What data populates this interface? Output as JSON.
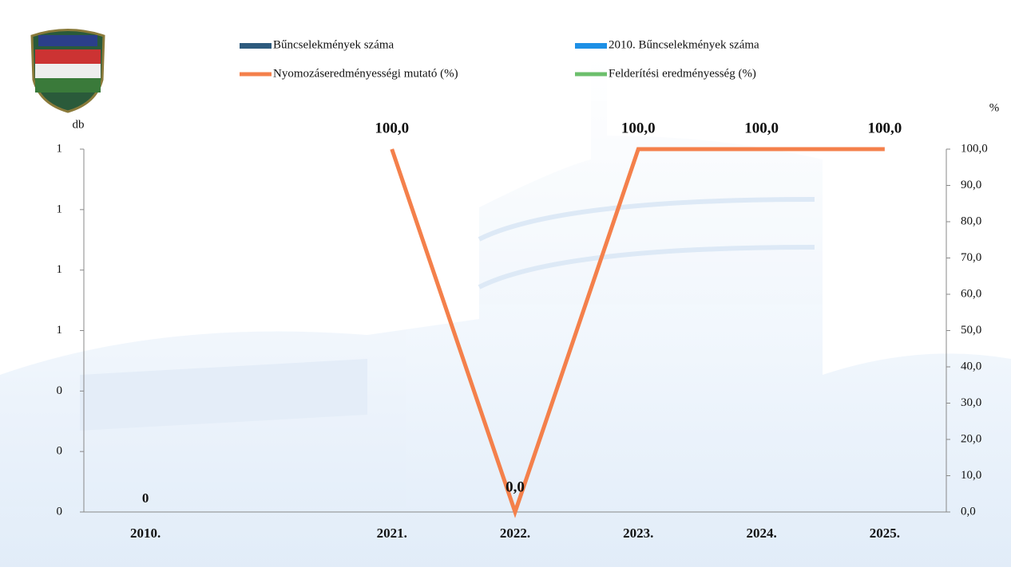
{
  "chart_data": {
    "type": "combo",
    "categories": [
      "2010.",
      null,
      "2021.",
      "2022.",
      "2023.",
      "2024.",
      "2025."
    ],
    "y_label": "db",
    "y2_label": "%",
    "ylim": [
      0,
      1.2
    ],
    "yticks": [
      0,
      {
        "value": 0.2,
        "label": "0"
      },
      {
        "value": 0.4,
        "label": "0"
      },
      {
        "value": 0.6,
        "label": "1"
      },
      {
        "value": 0.8,
        "label": "1"
      },
      {
        "value": 1,
        "label": "1"
      },
      {
        "value": 1.2,
        "label": "1"
      }
    ],
    "y2lim": [
      0,
      100
    ],
    "y2ticks": [
      {
        "value": 0,
        "label": "0,0"
      },
      {
        "value": 10,
        "label": "10,0"
      },
      {
        "value": 20,
        "label": "20,0"
      },
      {
        "value": 30,
        "label": "30,0"
      },
      {
        "value": 40,
        "label": "40,0"
      },
      {
        "value": 50,
        "label": "50,0"
      },
      {
        "value": 60,
        "label": "60,0"
      },
      {
        "value": 70,
        "label": "70,0"
      },
      {
        "value": 80,
        "label": "80,0"
      },
      {
        "value": 90,
        "label": "90,0"
      },
      {
        "value": 100,
        "label": "100,0"
      }
    ],
    "series": [
      {
        "name": "Bűncselekmények száma",
        "type": "bar",
        "color": "#2e5b7e",
        "values": [
          null,
          null,
          0,
          0,
          0,
          0,
          0
        ]
      },
      {
        "name": "2010. Bűncselekmények száma",
        "type": "bar",
        "color": "#1e90e6",
        "values": [
          0,
          null,
          null,
          null,
          null,
          null,
          null
        ],
        "data_labels": true
      },
      {
        "name": "Nyomozáseredményességi mutató (%)",
        "type": "line",
        "axis": "y2",
        "color": "#f4804b",
        "values": [
          null,
          null,
          100,
          0,
          100,
          100,
          100
        ],
        "value_labels": [
          null,
          null,
          "100,0",
          "0,0",
          "100,0",
          "100,0",
          "100,0"
        ]
      },
      {
        "name": "Felderítési eredményesség (%)",
        "type": "line",
        "axis": "y2",
        "color": "#6cbf6c",
        "values": [
          null,
          null,
          null,
          null,
          null,
          null,
          null
        ]
      }
    ]
  }
}
